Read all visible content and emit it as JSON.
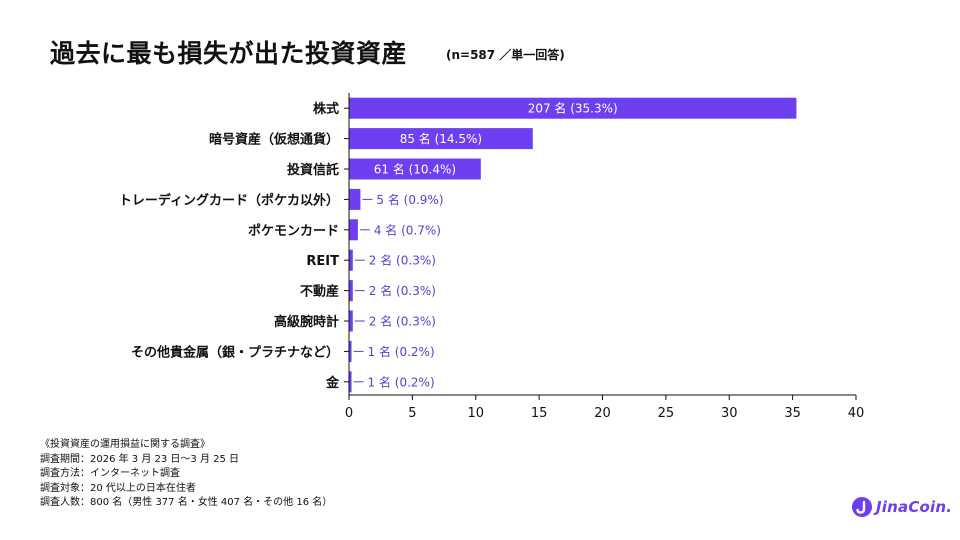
{
  "title": "過去に最も損失が出た投資資産",
  "subtitle": "(n=587 ／単一回答)",
  "colors": {
    "bar": "#6d3ff0",
    "label_outside": "#5a3fd0",
    "label_inside": "#ffffff",
    "axis": "#111111"
  },
  "chart_data": {
    "type": "bar",
    "orientation": "horizontal",
    "categories": [
      "株式",
      "暗号資産（仮想通貨）",
      "投資信託",
      "トレーディングカード（ポケカ以外）",
      "ポケモンカード",
      "REIT",
      "不動産",
      "高級腕時計",
      "その他貴金属（銀・プラチナなど）",
      "金"
    ],
    "values": [
      35.3,
      14.5,
      10.4,
      0.9,
      0.7,
      0.3,
      0.3,
      0.3,
      0.2,
      0.2
    ],
    "data_labels": [
      "207 名 (35.3%)",
      "85 名 (14.5%)",
      "61 名 (10.4%)",
      "5 名 (0.9%)",
      "4 名 (0.7%)",
      "2 名 (0.3%)",
      "2 名 (0.3%)",
      "2 名 (0.3%)",
      "1 名 (0.2%)",
      "1 名 (0.2%)"
    ],
    "label_inside": [
      true,
      true,
      true,
      false,
      false,
      false,
      false,
      false,
      false,
      false
    ],
    "xlim": [
      0,
      40
    ],
    "xticks": [
      0,
      5,
      10,
      15,
      20,
      25,
      30,
      35,
      40
    ],
    "grid": false,
    "legend": "none"
  },
  "footnote": [
    "《投資資産の運用損益に関する調査》",
    "調査期間：2026 年 3 月 23 日〜3 月 25 日",
    "調査方法：インターネット調査",
    "調査対象：20 代以上の日本在住者",
    "調査人数：800 名（男性 377 名・女性 407 名・その他 16 名）"
  ],
  "logo": {
    "text": "JinaCoin.",
    "icon": "jinacoin-logo-icon"
  }
}
